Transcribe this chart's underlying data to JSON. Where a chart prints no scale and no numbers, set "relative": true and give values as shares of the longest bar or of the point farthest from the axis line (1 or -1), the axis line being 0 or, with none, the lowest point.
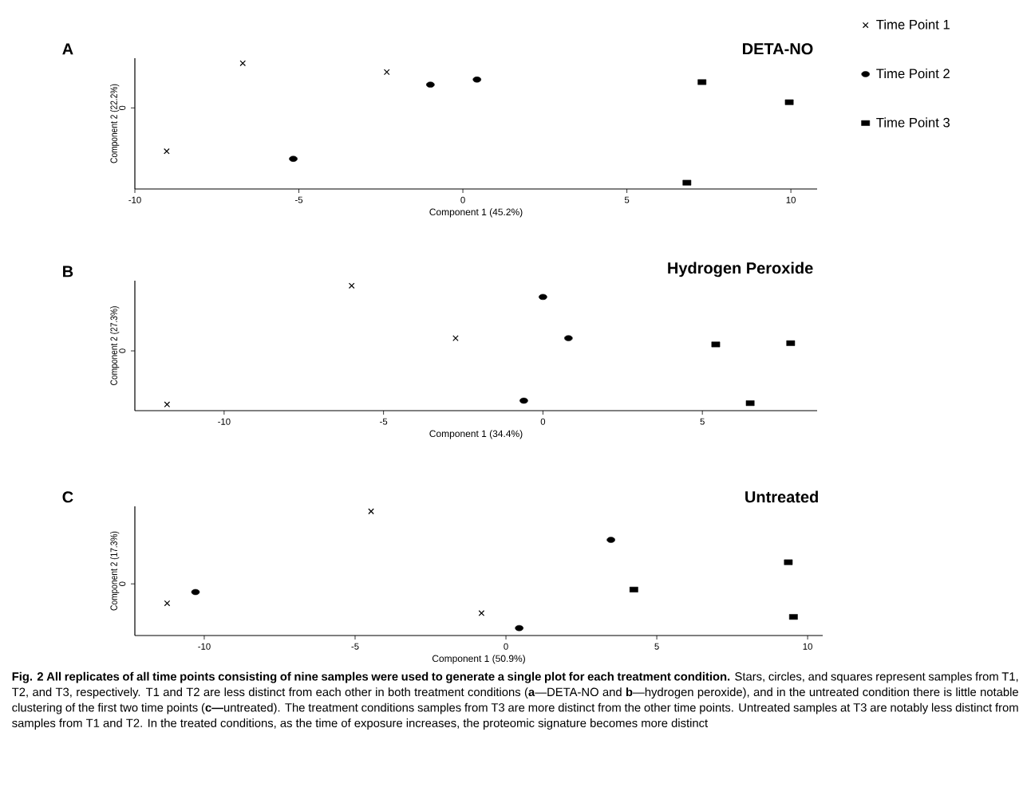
{
  "chart_data": [
    {
      "type": "scatter",
      "title": "DETA-NO",
      "xlabel": "Component 1 (45.2%)",
      "ylabel": "Component 2 (22.2%)",
      "relative": true,
      "xlim": [
        -10,
        10.8
      ],
      "xticks": [
        -10,
        -5,
        0,
        5,
        10
      ],
      "legend": "right",
      "annotations": [
        "A",
        "0"
      ],
      "series": [
        {
          "name": "Time Point 1",
          "color": "#000000",
          "marker": "cross",
          "x": [
            -6.71,
            -2.32,
            -9.03
          ],
          "values": [
            1,
            0.93,
            0.3
          ]
        },
        {
          "name": "Time Point 2",
          "color": "#000000",
          "marker": "circle",
          "x": [
            -0.99,
            0.43,
            -5.17
          ],
          "values": [
            0.83,
            0.87,
            0.24
          ]
        },
        {
          "name": "Time Point 3",
          "color": "#000000",
          "marker": "square",
          "x": [
            7.29,
            9.95,
            6.83
          ],
          "values": [
            0.85,
            0.69,
            0.05
          ]
        }
      ]
    },
    {
      "type": "scatter",
      "title": "Hydrogen Peroxide",
      "xlabel": "Component 1 (34.4%)",
      "ylabel": "Component 2 (27.3%)",
      "relative": true,
      "xlim": [
        -12.8,
        8.6
      ],
      "xticks": [
        -10,
        -5,
        0,
        5
      ],
      "annotations": [
        "B",
        "0"
      ],
      "series": [
        {
          "color": "#000000",
          "marker": "cross",
          "x": [
            -6.0,
            -2.74,
            -11.79
          ],
          "values": [
            1,
            0.58,
            0.05
          ]
        },
        {
          "color": "#000000",
          "marker": "circle",
          "x": [
            0.0,
            0.8,
            -0.6
          ],
          "values": [
            0.91,
            0.58,
            0.08
          ]
        },
        {
          "color": "#000000",
          "marker": "square",
          "x": [
            5.42,
            7.77,
            6.5
          ],
          "values": [
            0.53,
            0.54,
            0.06
          ]
        }
      ]
    },
    {
      "type": "scatter",
      "title": "Untreated",
      "xlabel": "Component 1 (50.9%)",
      "ylabel": "Component 2 (17.3%)",
      "relative": true,
      "xlim": [
        -12.3,
        10.5
      ],
      "xticks": [
        -10,
        -5,
        0,
        5,
        10
      ],
      "annotations": [
        "C",
        "0",
        "**Fig. 2 All replicates of all time points consisting of nine samples were used to generate a single plot for each treatment condition.** Stars, circles, and squares represent samples from T1, T2, and T3, respectively. T1 and T2 are less distinct from each other in both treatment conditions (**a**—DETA-NO and **b**—hydrogen peroxide), and in the untreated condition there is little notable clustering of the first two time points (**c—**untreated). The treatment conditions samples from T3 are more distinct from the other time points. Untreated samples at T3 are notably less distinct from samples from T1 and T2. In the treated conditions, as the time of exposure increases, the proteomic signature becomes more distinct"
      ],
      "series": [
        {
          "color": "#000000",
          "marker": "cross",
          "x": [
            -11.23,
            -4.47,
            -0.81
          ],
          "values": [
            0.26,
            1,
            0.18
          ]
        },
        {
          "color": "#000000",
          "marker": "circle",
          "x": [
            -10.29,
            3.48,
            0.44
          ],
          "values": [
            0.35,
            0.77,
            0.06
          ]
        },
        {
          "color": "#000000",
          "marker": "square",
          "x": [
            4.24,
            9.36,
            9.53
          ],
          "values": [
            0.37,
            0.59,
            0.15
          ]
        }
      ]
    }
  ]
}
